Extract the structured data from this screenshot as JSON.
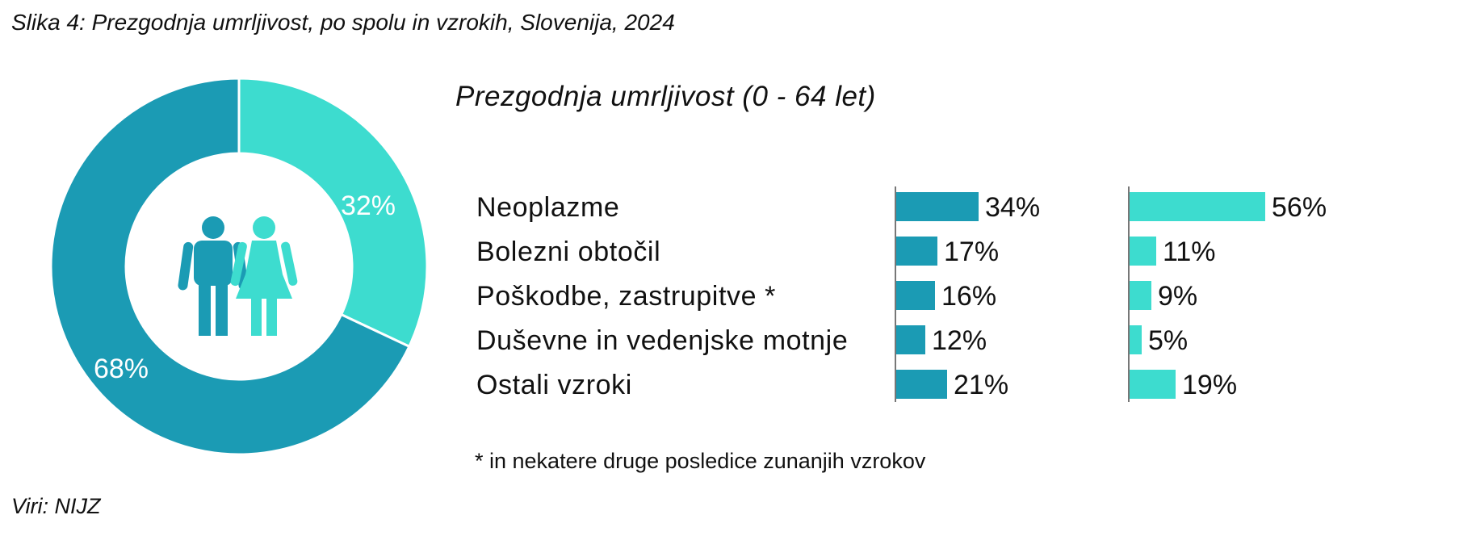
{
  "figure": {
    "caption": "Slika 4: Prezgodnja umrljivost, po spolu in vzrokih, Slovenija, 2024",
    "source": "Viri: NIJZ",
    "footnote": "*  in nekatere druge posledice zunanjih vzrokov"
  },
  "colors": {
    "male": "#1b9bb4",
    "female": "#3ddccf",
    "axis": "#777777"
  },
  "icons": {
    "center": "man-woman-icon"
  },
  "chart_data": [
    {
      "type": "pie",
      "variant": "donut",
      "labels": [
        "Moški",
        "Ženske"
      ],
      "values": [
        68,
        32
      ],
      "value_labels": [
        "68%",
        "32%"
      ],
      "colors": [
        "#1b9bb4",
        "#3ddccf"
      ]
    },
    {
      "type": "bar",
      "orientation": "horizontal",
      "title": "Prezgodnja umrljivost (0 - 64 let)",
      "categories": [
        "Neoplazme",
        "Bolezni obtočil",
        "Poškodbe, zastrupitve *",
        "Duševne in vedenjske motnje",
        "Ostali vzroki"
      ],
      "series": [
        {
          "values": [
            34,
            17,
            16,
            12,
            21
          ],
          "labels": [
            "34%",
            "17%",
            "16%",
            "12%",
            "21%"
          ],
          "color": "#1b9bb4"
        },
        {
          "values": [
            56,
            11,
            9,
            5,
            19
          ],
          "labels": [
            "56%",
            "11%",
            "9%",
            "5%",
            "19%"
          ],
          "color": "#3ddccf"
        }
      ],
      "unit": "%"
    }
  ]
}
